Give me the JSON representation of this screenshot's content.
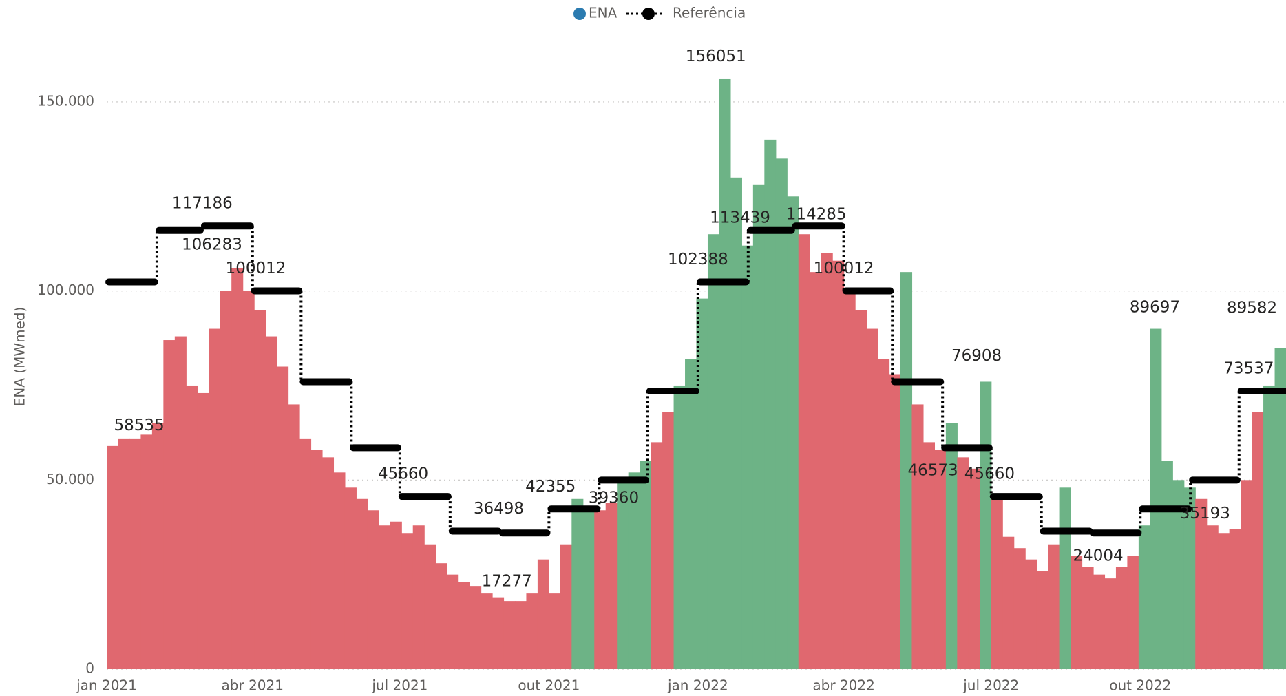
{
  "chart_data": {
    "type": "bar",
    "ylabel": "ENA (MWmed)",
    "xlim": [
      "2021-01-01",
      "2022-12-30"
    ],
    "xticks": [
      {
        "value": "2021-01-01",
        "label": "jan 2021"
      },
      {
        "value": "2021-04-01",
        "label": "abr 2021"
      },
      {
        "value": "2021-07-01",
        "label": "jul 2021"
      },
      {
        "value": "2021-10-01",
        "label": "out 2021"
      },
      {
        "value": "2022-01-01",
        "label": "jan 2022"
      },
      {
        "value": "2022-04-01",
        "label": "abr 2022"
      },
      {
        "value": "2022-07-01",
        "label": "jul 2022"
      },
      {
        "value": "2022-10-01",
        "label": "out 2022"
      }
    ],
    "ylim": [
      0,
      160000
    ],
    "yticks": [
      0,
      {
        "value": 50000,
        "label": "50.000"
      },
      {
        "value": 100000,
        "label": "100.000"
      },
      {
        "value": 150000,
        "label": "150.000"
      }
    ],
    "grid": true,
    "legend": "top",
    "series": [
      {
        "name": "ENA",
        "color": "#2b7bb0",
        "above_color": "#6db386",
        "below_color": "#e0686f",
        "x": [
          "2021-01-01",
          "2021-01-08",
          "2021-01-15",
          "2021-01-22",
          "2021-01-29",
          "2021-02-05",
          "2021-02-12",
          "2021-02-19",
          "2021-02-26",
          "2021-03-05",
          "2021-03-12",
          "2021-03-19",
          "2021-03-26",
          "2021-04-02",
          "2021-04-09",
          "2021-04-16",
          "2021-04-23",
          "2021-04-30",
          "2021-05-07",
          "2021-05-14",
          "2021-05-21",
          "2021-05-28",
          "2021-06-04",
          "2021-06-11",
          "2021-06-18",
          "2021-06-25",
          "2021-07-02",
          "2021-07-09",
          "2021-07-16",
          "2021-07-23",
          "2021-07-30",
          "2021-08-06",
          "2021-08-13",
          "2021-08-20",
          "2021-08-27",
          "2021-09-03",
          "2021-09-10",
          "2021-09-17",
          "2021-09-24",
          "2021-10-01",
          "2021-10-08",
          "2021-10-15",
          "2021-10-22",
          "2021-10-29",
          "2021-11-05",
          "2021-11-12",
          "2021-11-19",
          "2021-11-26",
          "2021-12-03",
          "2021-12-10",
          "2021-12-17",
          "2021-12-24",
          "2021-12-31",
          "2022-01-07",
          "2022-01-14",
          "2022-01-21",
          "2022-01-28",
          "2022-02-04",
          "2022-02-11",
          "2022-02-18",
          "2022-02-25",
          "2022-03-04",
          "2022-03-11",
          "2022-03-18",
          "2022-03-25",
          "2022-04-01",
          "2022-04-08",
          "2022-04-15",
          "2022-04-22",
          "2022-04-29",
          "2022-05-06",
          "2022-05-13",
          "2022-05-20",
          "2022-05-27",
          "2022-06-03",
          "2022-06-10",
          "2022-06-17",
          "2022-06-24",
          "2022-07-01",
          "2022-07-08",
          "2022-07-15",
          "2022-07-22",
          "2022-07-29",
          "2022-08-05",
          "2022-08-12",
          "2022-08-19",
          "2022-08-26",
          "2022-09-02",
          "2022-09-09",
          "2022-09-16",
          "2022-09-23",
          "2022-09-30",
          "2022-10-07",
          "2022-10-14",
          "2022-10-21",
          "2022-10-28",
          "2022-11-04",
          "2022-11-11",
          "2022-11-18",
          "2022-11-25",
          "2022-12-02",
          "2022-12-09",
          "2022-12-16",
          "2022-12-23"
        ],
        "values": [
          59000,
          61000,
          61000,
          62000,
          65000,
          87000,
          88000,
          75000,
          73000,
          90000,
          100000,
          106000,
          100000,
          95000,
          88000,
          80000,
          70000,
          61000,
          58000,
          56000,
          52000,
          48000,
          45000,
          42000,
          38000,
          39000,
          36000,
          38000,
          33000,
          28000,
          25000,
          23000,
          22000,
          20000,
          19000,
          18000,
          18000,
          20000,
          29000,
          20000,
          33000,
          45000,
          43000,
          42000,
          44000,
          50000,
          52000,
          55000,
          60000,
          68000,
          75000,
          82000,
          98000,
          115000,
          156000,
          130000,
          112000,
          128000,
          140000,
          135000,
          125000,
          115000,
          105000,
          110000,
          108000,
          100000,
          95000,
          90000,
          82000,
          78000,
          105000,
          70000,
          60000,
          58000,
          65000,
          56000,
          53000,
          76000,
          45000,
          35000,
          32000,
          29000,
          26000,
          33000,
          48000,
          30000,
          27000,
          25000,
          24000,
          27000,
          30000,
          38000,
          90000,
          55000,
          50000,
          48000,
          45000,
          38000,
          36000,
          37000,
          50000,
          68000,
          75000,
          85000
        ]
      },
      {
        "name": "Referência",
        "color": "#000000",
        "x": [
          "2021-01",
          "2021-02",
          "2021-03",
          "2021-04",
          "2021-05",
          "2021-06",
          "2021-07",
          "2021-08",
          "2021-09",
          "2021-10",
          "2021-11",
          "2021-12",
          "2022-01",
          "2022-02",
          "2022-03",
          "2022-04",
          "2022-05",
          "2022-06",
          "2022-07",
          "2022-08",
          "2022-09",
          "2022-10",
          "2022-11",
          "2022-12"
        ],
        "values": [
          102388,
          116000,
          117186,
          100012,
          76000,
          58535,
          45660,
          36498,
          36000,
          42355,
          50000,
          73537,
          102388,
          116000,
          117186,
          100012,
          76000,
          58535,
          45660,
          36498,
          36000,
          42355,
          50000,
          73537
        ]
      }
    ],
    "annotations": [
      {
        "x": "2021-01-21",
        "value": 58535
      },
      {
        "x": "2021-03-01",
        "value": 117186
      },
      {
        "x": "2021-03-07",
        "value": 106283
      },
      {
        "x": "2021-04-03",
        "value": 100012
      },
      {
        "x": "2021-07-03",
        "value": 45660
      },
      {
        "x": "2021-08-31",
        "value": 36498
      },
      {
        "x": "2021-09-05",
        "value": 17277
      },
      {
        "x": "2021-10-02",
        "value": 42355
      },
      {
        "x": "2021-11-10",
        "value": 39360
      },
      {
        "x": "2022-01-12",
        "value": 156051
      },
      {
        "x": "2022-01-01",
        "value": 102388
      },
      {
        "x": "2022-01-27",
        "value": 113439
      },
      {
        "x": "2022-03-15",
        "value": 114285
      },
      {
        "x": "2022-04-01",
        "value": 100012
      },
      {
        "x": "2022-06-22",
        "value": 76908
      },
      {
        "x": "2022-05-26",
        "value": 46573
      },
      {
        "x": "2022-06-30",
        "value": 45660
      },
      {
        "x": "2022-09-05",
        "value": 24004
      },
      {
        "x": "2022-10-10",
        "value": 89697
      },
      {
        "x": "2022-11-10",
        "value": 35193
      },
      {
        "x": "2022-12-09",
        "value": 89582
      },
      {
        "x": "2022-12-07",
        "value": 73537
      }
    ]
  }
}
